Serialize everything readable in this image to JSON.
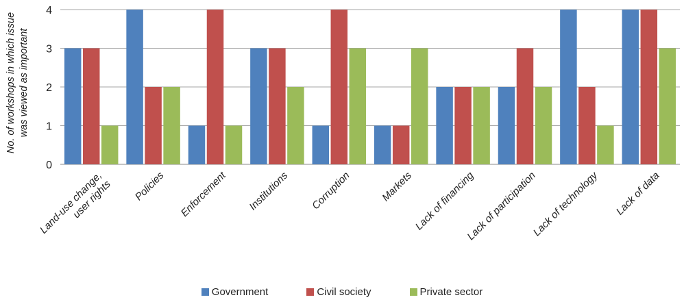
{
  "chart_data": {
    "type": "bar",
    "title": "",
    "xlabel": "",
    "ylabel_lines": [
      "No. of workshops in which issue",
      "was viewed as important"
    ],
    "ylim": [
      0,
      4
    ],
    "yticks": [
      0,
      1,
      2,
      3,
      4
    ],
    "grid": true,
    "legend_position": "bottom-center",
    "category_lines": [
      [
        "Land-use change,",
        "user rights"
      ],
      [
        "Policies"
      ],
      [
        "Enforcement"
      ],
      [
        "Institutions"
      ],
      [
        "Corruption"
      ],
      [
        "Markets"
      ],
      [
        "Lack of financing"
      ],
      [
        "Lack of participation"
      ],
      [
        "Lack of technology"
      ],
      [
        "Lack of data"
      ]
    ],
    "series": [
      {
        "name": "Government",
        "color": "#4f81bd",
        "values": [
          3,
          4,
          1,
          3,
          1,
          1,
          2,
          2,
          4,
          4
        ]
      },
      {
        "name": "Civil society",
        "color": "#c0504d",
        "values": [
          3,
          2,
          4,
          3,
          4,
          1,
          2,
          3,
          2,
          4
        ]
      },
      {
        "name": "Private sector",
        "color": "#9bbb59",
        "values": [
          1,
          2,
          1,
          2,
          3,
          3,
          2,
          2,
          1,
          3
        ]
      }
    ]
  },
  "legend": {
    "items": [
      {
        "label": "Government"
      },
      {
        "label": "Civil society"
      },
      {
        "label": "Private sector"
      }
    ]
  }
}
